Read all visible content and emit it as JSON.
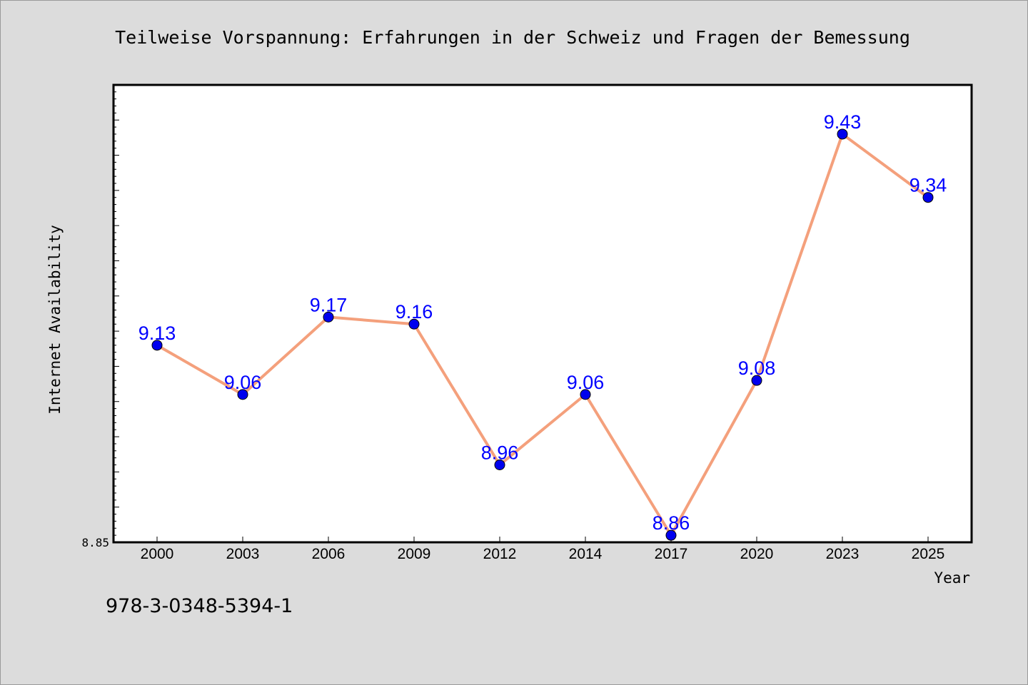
{
  "chart_data": {
    "type": "line",
    "title": "Teilweise Vorspannung: Erfahrungen in der Schweiz und Fragen der Bemessung",
    "xlabel": "Year",
    "ylabel": "Internet Availability",
    "categories": [
      "2000",
      "2003",
      "2006",
      "2009",
      "2012",
      "2014",
      "2017",
      "2020",
      "2023",
      "2025"
    ],
    "series": [
      {
        "values": [
          9.13,
          9.06,
          9.17,
          9.16,
          8.96,
          9.06,
          8.86,
          9.08,
          9.43,
          9.34
        ],
        "data_labels": [
          "9.13",
          "9.06",
          "9.17",
          "9.16",
          "8.96",
          "9.06",
          "8.86",
          "9.08",
          "9.43",
          "9.34"
        ]
      }
    ],
    "y_tick_labels": [
      "8.85"
    ],
    "ylim": [
      8.85,
      9.5
    ],
    "grid": false,
    "line_color": "#f4a07c",
    "marker_color": "#0000ee",
    "label_color": "#0000ff",
    "plot_background": "#ffffff",
    "figure_background": "#dcdcdc"
  },
  "footer": {
    "code": "978-3-0348-5394-1"
  }
}
